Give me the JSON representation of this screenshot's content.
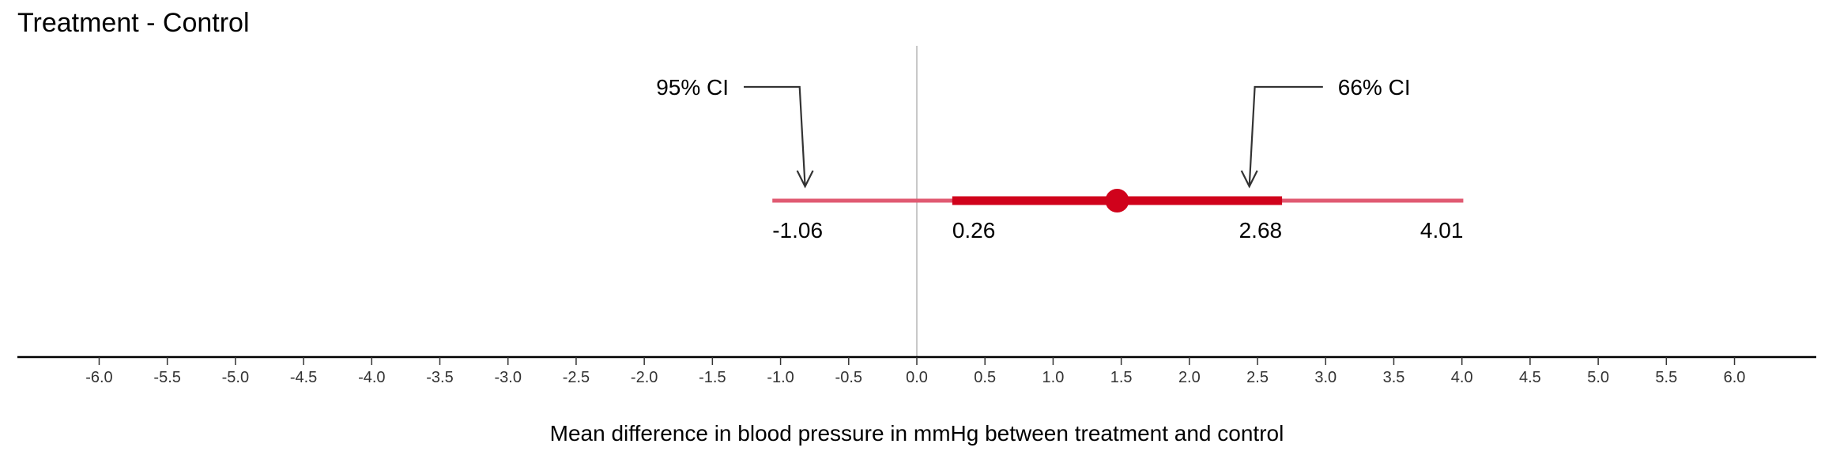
{
  "chart_data": {
    "type": "interval",
    "title": "Treatment - Control",
    "xlabel": "Mean difference in blood pressure in mmHg between treatment and control",
    "xlim": [
      -6.6,
      6.6
    ],
    "ticks": [
      -6.0,
      -5.5,
      -5.0,
      -4.5,
      -4.0,
      -3.5,
      -3.0,
      -2.5,
      -2.0,
      -1.5,
      -1.0,
      -0.5,
      0.0,
      0.5,
      1.0,
      1.5,
      2.0,
      2.5,
      3.0,
      3.5,
      4.0,
      4.5,
      5.0,
      5.5,
      6.0
    ],
    "tick_labels": [
      "-6.0",
      "-5.5",
      "-5.0",
      "-4.5",
      "-4.0",
      "-3.5",
      "-3.0",
      "-2.5",
      "-2.0",
      "-1.5",
      "-1.0",
      "-0.5",
      "0.0",
      "0.5",
      "1.0",
      "1.5",
      "2.0",
      "2.5",
      "3.0",
      "3.5",
      "4.0",
      "4.5",
      "5.0",
      "5.5",
      "6.0"
    ],
    "reference_line": 0,
    "point_estimate": 1.47,
    "ci95": {
      "low": -1.06,
      "high": 4.01,
      "low_label": "-1.06",
      "high_label": "4.01"
    },
    "ci66": {
      "low": 0.26,
      "high": 2.68,
      "low_label": "0.26",
      "high_label": "2.68"
    },
    "annotations": [
      {
        "text": "95% CI",
        "target": -0.82
      },
      {
        "text": "66% CI",
        "target": 2.44
      }
    ],
    "colors": {
      "ci95": "#e05a72",
      "ci66": "#d0021b",
      "point": "#d0021b",
      "reference": "#c8c8c8",
      "axis": "#000000",
      "arrow": "#333333"
    },
    "grid": false
  }
}
